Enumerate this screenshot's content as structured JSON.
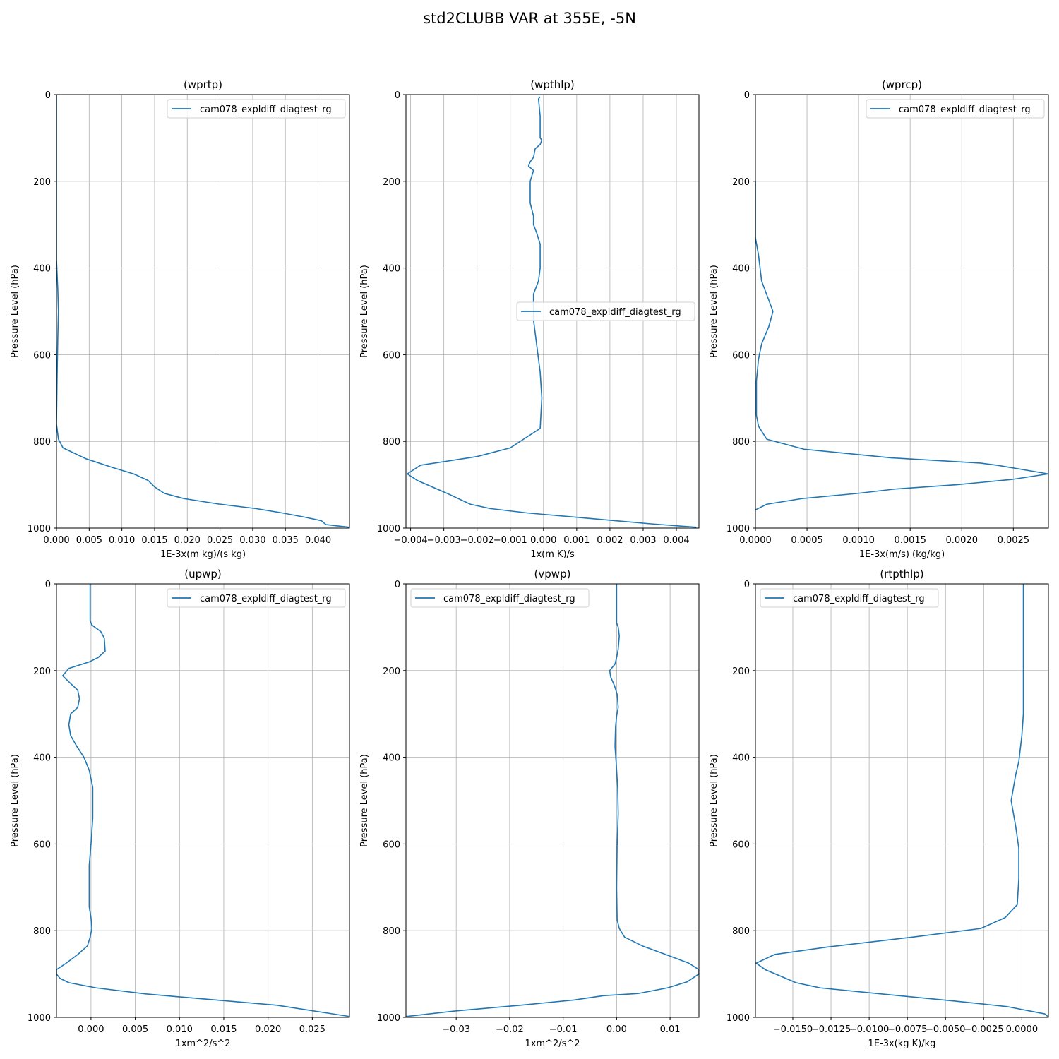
{
  "figure": {
    "title": "std2CLUBB VAR at 355E, -5N"
  },
  "chart_data": [
    {
      "type": "line",
      "title": "(wprtp)",
      "xlabel": "1E-3x(m kg)/(s kg)",
      "ylabel": "Pressure Level (hPa)",
      "xlim": [
        0.0,
        0.0448
      ],
      "ylim": [
        1000,
        0
      ],
      "xticks": [
        0.0,
        0.005,
        0.01,
        0.015,
        0.02,
        0.025,
        0.03,
        0.035,
        0.04
      ],
      "xtick_labels": [
        "0.000",
        "0.005",
        "0.010",
        "0.015",
        "0.020",
        "0.025",
        "0.030",
        "0.035",
        "0.040"
      ],
      "yticks": [
        0,
        200,
        400,
        600,
        800,
        1000
      ],
      "grid": true,
      "legend": "upper right",
      "series": [
        {
          "name": "cam078_expldiff_diagtest_rg",
          "color": "#1f77b4",
          "points": [
            [
              0.0,
              0
            ],
            [
              0.0,
              380
            ],
            [
              0.0002,
              450
            ],
            [
              0.0003,
              500
            ],
            [
              0.0002,
              560
            ],
            [
              0.0001,
              650
            ],
            [
              0.0,
              760
            ],
            [
              0.0003,
              795
            ],
            [
              0.001,
              815
            ],
            [
              0.0045,
              840
            ],
            [
              0.0085,
              860
            ],
            [
              0.0118,
              875
            ],
            [
              0.014,
              890
            ],
            [
              0.015,
              905
            ],
            [
              0.0165,
              920
            ],
            [
              0.0195,
              932
            ],
            [
              0.025,
              945
            ],
            [
              0.0305,
              955
            ],
            [
              0.0345,
              965
            ],
            [
              0.038,
              975
            ],
            [
              0.0405,
              983
            ],
            [
              0.0412,
              992
            ],
            [
              0.0448,
              998
            ]
          ]
        }
      ]
    },
    {
      "type": "line",
      "title": "(wpthlp)",
      "xlabel": "1x(m K)/s",
      "ylabel": "Pressure Level (hPa)",
      "xlim": [
        -0.00414,
        0.00468
      ],
      "ylim": [
        1000,
        0
      ],
      "xticks": [
        -0.004,
        -0.003,
        -0.002,
        -0.001,
        0.0,
        0.001,
        0.002,
        0.003,
        0.004
      ],
      "xtick_labels": [
        "−0.004",
        "−0.003",
        "−0.002",
        "−0.001",
        "0.000",
        "0.001",
        "0.002",
        "0.003",
        "0.004"
      ],
      "yticks": [
        0,
        200,
        400,
        600,
        800,
        1000
      ],
      "grid": true,
      "legend": "center right",
      "series": [
        {
          "name": "cam078_expldiff_diagtest_rg",
          "color": "#1f77b4",
          "points": [
            [
              -0.0001,
              5
            ],
            [
              -0.00015,
              10
            ],
            [
              -0.0001,
              50
            ],
            [
              -0.0001,
              100
            ],
            [
              -5e-05,
              105
            ],
            [
              -0.0001,
              115
            ],
            [
              -0.00025,
              125
            ],
            [
              -0.0003,
              145
            ],
            [
              -0.0004,
              155
            ],
            [
              -0.00045,
              165
            ],
            [
              -0.0003,
              175
            ],
            [
              -0.0004,
              200
            ],
            [
              -0.0004,
              250
            ],
            [
              -0.0003,
              280
            ],
            [
              -0.0003,
              300
            ],
            [
              -0.0002,
              320
            ],
            [
              -0.0001,
              345
            ],
            [
              -0.0001,
              400
            ],
            [
              -0.00015,
              430
            ],
            [
              -0.0003,
              460
            ],
            [
              -0.0003,
              520
            ],
            [
              -0.0002,
              580
            ],
            [
              -0.0001,
              640
            ],
            [
              -5e-05,
              700
            ],
            [
              -0.0001,
              770
            ],
            [
              -0.0006,
              795
            ],
            [
              -0.001,
              815
            ],
            [
              -0.002,
              835
            ],
            [
              -0.0037,
              855
            ],
            [
              -0.0041,
              875
            ],
            [
              -0.0038,
              890
            ],
            [
              -0.0029,
              920
            ],
            [
              -0.0022,
              945
            ],
            [
              -0.0016,
              955
            ],
            [
              -0.0005,
              965
            ],
            [
              0.001,
              975
            ],
            [
              0.0032,
              990
            ],
            [
              0.0046,
              998
            ]
          ]
        }
      ]
    },
    {
      "type": "line",
      "title": "(wprcp)",
      "xlabel": "1E-3x(m/s) (kg/kg)",
      "ylabel": "Pressure Level (hPa)",
      "xlim": [
        0.0,
        0.00284
      ],
      "ylim": [
        1000,
        0
      ],
      "xticks": [
        0.0,
        0.0005,
        0.001,
        0.0015,
        0.002,
        0.0025
      ],
      "xtick_labels": [
        "0.0000",
        "0.0005",
        "0.0010",
        "0.0015",
        "0.0020",
        "0.0025"
      ],
      "yticks": [
        0,
        200,
        400,
        600,
        800,
        1000
      ],
      "grid": true,
      "legend": "upper right",
      "series": [
        {
          "name": "cam078_expldiff_diagtest_rg",
          "color": "#1f77b4",
          "points": [
            [
              0.0,
              200
            ],
            [
              0.0,
              300
            ],
            [
              0.0,
              330
            ],
            [
              3e-05,
              370
            ],
            [
              6e-05,
              430
            ],
            [
              0.00017,
              500
            ],
            [
              0.00013,
              535
            ],
            [
              6e-05,
              575
            ],
            [
              3e-05,
              610
            ],
            [
              1e-05,
              660
            ],
            [
              1e-05,
              740
            ],
            [
              3e-05,
              765
            ],
            [
              0.00011,
              795
            ],
            [
              0.00047,
              818
            ],
            [
              0.00132,
              838
            ],
            [
              0.00218,
              850
            ],
            [
              0.00234,
              855
            ],
            [
              0.00284,
              875
            ],
            [
              0.00248,
              888
            ],
            [
              0.00195,
              900
            ],
            [
              0.00135,
              910
            ],
            [
              0.00099,
              920
            ],
            [
              0.00045,
              932
            ],
            [
              0.00011,
              945
            ],
            [
              0.0,
              958
            ]
          ]
        }
      ]
    },
    {
      "type": "line",
      "title": "(upwp)",
      "xlabel": "1xm^2/s^2",
      "ylabel": "Pressure Level (hPa)",
      "xlim": [
        -0.0039,
        0.0292
      ],
      "ylim": [
        1000,
        0
      ],
      "xticks": [
        0.0,
        0.005,
        0.01,
        0.015,
        0.02,
        0.025
      ],
      "xtick_labels": [
        "0.000",
        "0.005",
        "0.010",
        "0.015",
        "0.020",
        "0.025"
      ],
      "yticks": [
        0,
        200,
        400,
        600,
        800,
        1000
      ],
      "grid": true,
      "legend": "upper right",
      "series": [
        {
          "name": "cam078_expldiff_diagtest_rg",
          "color": "#1f77b4",
          "points": [
            [
              -0.0001,
              0
            ],
            [
              -0.0001,
              85
            ],
            [
              0.0001,
              95
            ],
            [
              0.0011,
              110
            ],
            [
              0.0015,
              125
            ],
            [
              0.0016,
              155
            ],
            [
              0.0008,
              170
            ],
            [
              -0.0002,
              180
            ],
            [
              -0.0025,
              195
            ],
            [
              -0.0032,
              212
            ],
            [
              -0.0023,
              230
            ],
            [
              -0.0015,
              245
            ],
            [
              -0.0013,
              265
            ],
            [
              -0.0015,
              285
            ],
            [
              -0.0023,
              300
            ],
            [
              -0.0025,
              325
            ],
            [
              -0.0023,
              350
            ],
            [
              -0.0016,
              375
            ],
            [
              -0.0008,
              400
            ],
            [
              -0.0002,
              430
            ],
            [
              0.0002,
              470
            ],
            [
              0.0002,
              540
            ],
            [
              0.0,
              600
            ],
            [
              -0.0002,
              650
            ],
            [
              -0.0002,
              700
            ],
            [
              -0.0002,
              745
            ],
            [
              0.0,
              770
            ],
            [
              0.0001,
              795
            ],
            [
              -0.0001,
              815
            ],
            [
              -0.0004,
              835
            ],
            [
              -0.0015,
              855
            ],
            [
              -0.0028,
              875
            ],
            [
              -0.0039,
              890
            ],
            [
              -0.0039,
              900
            ],
            [
              -0.0035,
              910
            ],
            [
              -0.0025,
              920
            ],
            [
              0.0006,
              932
            ],
            [
              0.0062,
              946
            ],
            [
              0.013,
              958
            ],
            [
              0.021,
              972
            ],
            [
              0.0292,
              998
            ]
          ]
        }
      ]
    },
    {
      "type": "line",
      "title": "(vpwp)",
      "xlabel": "1xm^2/s^2",
      "ylabel": "Pressure Level (hPa)",
      "xlim": [
        -0.0394,
        0.0154
      ],
      "ylim": [
        1000,
        0
      ],
      "xticks": [
        -0.03,
        -0.02,
        -0.01,
        0.0,
        0.01
      ],
      "xtick_labels": [
        "−0.03",
        "−0.02",
        "−0.01",
        "0.00",
        "0.01"
      ],
      "yticks": [
        0,
        200,
        400,
        600,
        800,
        1000
      ],
      "grid": true,
      "legend": "upper left",
      "series": [
        {
          "name": "cam078_expldiff_diagtest_rg",
          "color": "#1f77b4",
          "points": [
            [
              0.0,
              0
            ],
            [
              0.0,
              90
            ],
            [
              0.0003,
              100
            ],
            [
              0.0005,
              120
            ],
            [
              0.0003,
              150
            ],
            [
              0.0,
              170
            ],
            [
              -0.0003,
              185
            ],
            [
              -0.0013,
              200
            ],
            [
              -0.0011,
              215
            ],
            [
              -0.0004,
              235
            ],
            [
              0.0001,
              255
            ],
            [
              0.0003,
              285
            ],
            [
              0.0,
              305
            ],
            [
              -0.0002,
              330
            ],
            [
              -0.0003,
              375
            ],
            [
              -0.0001,
              410
            ],
            [
              0.0002,
              470
            ],
            [
              0.0003,
              530
            ],
            [
              0.0001,
              600
            ],
            [
              0.0,
              700
            ],
            [
              0.0001,
              775
            ],
            [
              0.0005,
              795
            ],
            [
              0.0015,
              815
            ],
            [
              0.0048,
              835
            ],
            [
              0.0092,
              855
            ],
            [
              0.0135,
              875
            ],
            [
              0.0154,
              890
            ],
            [
              0.0154,
              900
            ],
            [
              0.0132,
              918
            ],
            [
              0.0095,
              932
            ],
            [
              0.004,
              945
            ],
            [
              -0.0025,
              950
            ],
            [
              -0.008,
              960
            ],
            [
              -0.018,
              972
            ],
            [
              -0.03,
              985
            ],
            [
              -0.0394,
              998
            ]
          ]
        }
      ]
    },
    {
      "type": "line",
      "title": "(rtpthlp)",
      "xlabel": "1E-3x(kg K)/kg",
      "ylabel": "Pressure Level (hPa)",
      "xlim": [
        -0.01745,
        0.00174
      ],
      "ylim": [
        1000,
        0
      ],
      "xticks": [
        -0.015,
        -0.0125,
        -0.01,
        -0.0075,
        -0.005,
        -0.0025,
        0.0
      ],
      "xtick_labels": [
        "−0.0150",
        "−0.0125",
        "−0.0100",
        "−0.0075",
        "−0.0050",
        "−0.0025",
        "0.0000"
      ],
      "yticks": [
        0,
        200,
        400,
        600,
        800,
        1000
      ],
      "grid": true,
      "legend": "upper left",
      "series": [
        {
          "name": "cam078_expldiff_diagtest_rg",
          "color": "#1f77b4",
          "points": [
            [
              0.0001,
              0
            ],
            [
              0.0001,
              300
            ],
            [
              0.0,
              350
            ],
            [
              -0.0002,
              410
            ],
            [
              -0.0004,
              440
            ],
            [
              -0.0007,
              500
            ],
            [
              -0.0004,
              560
            ],
            [
              -0.0002,
              610
            ],
            [
              -0.0002,
              680
            ],
            [
              -0.0003,
              740
            ],
            [
              -0.0011,
              770
            ],
            [
              -0.0027,
              795
            ],
            [
              -0.0072,
              815
            ],
            [
              -0.0128,
              838
            ],
            [
              -0.0162,
              855
            ],
            [
              -0.0174,
              875
            ],
            [
              -0.0168,
              890
            ],
            [
              -0.0158,
              905
            ],
            [
              -0.0148,
              920
            ],
            [
              -0.0132,
              932
            ],
            [
              -0.0095,
              945
            ],
            [
              -0.0045,
              962
            ],
            [
              -0.001,
              975
            ],
            [
              0.0015,
              992
            ],
            [
              0.0017,
              998
            ]
          ]
        }
      ]
    }
  ]
}
